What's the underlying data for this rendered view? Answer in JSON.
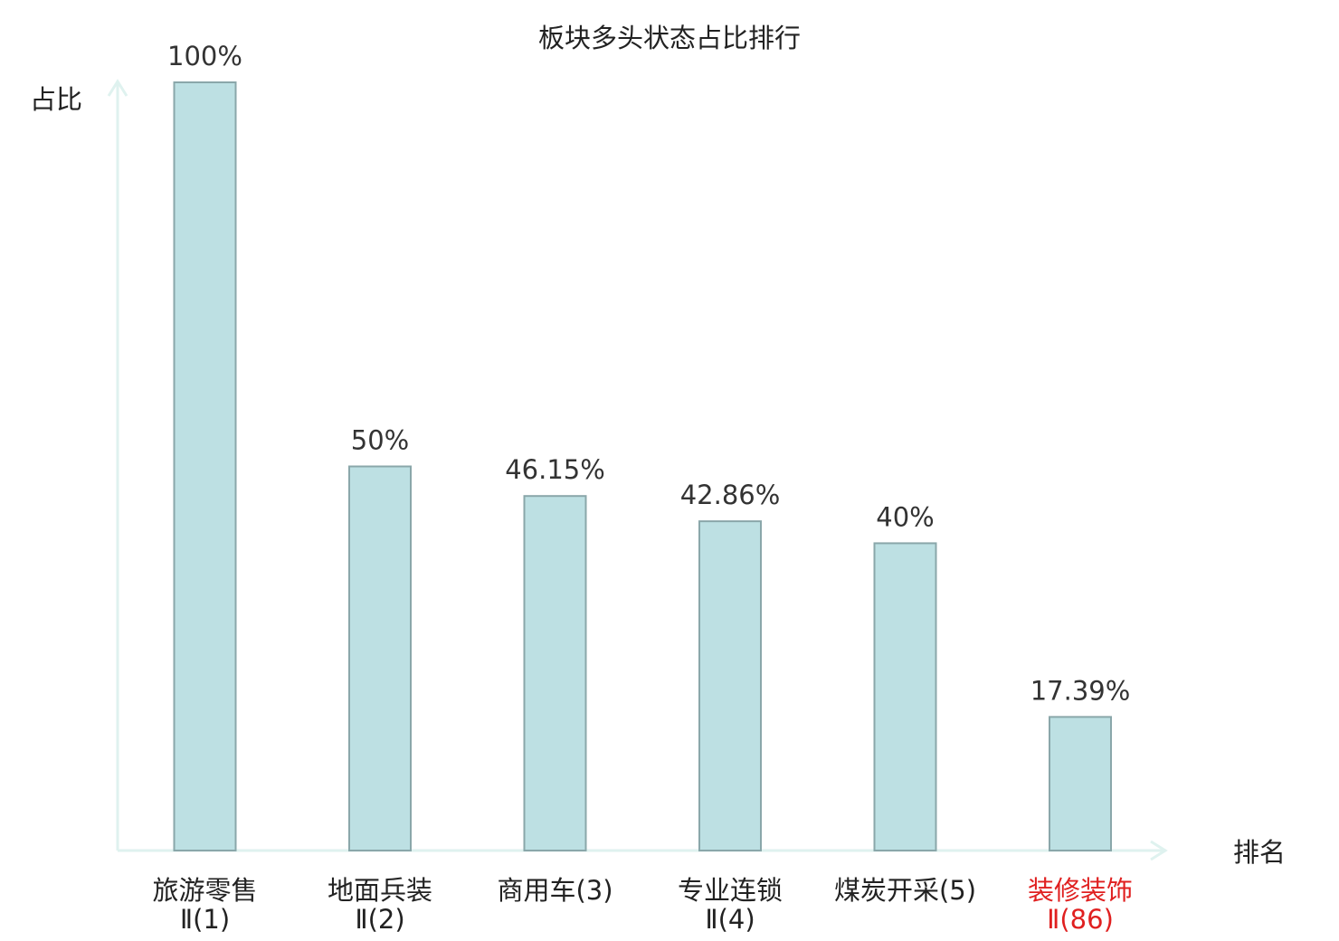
{
  "chart_data": {
    "type": "bar",
    "title": "板块多头状态占比排行",
    "ylabel": "占比",
    "xlabel": "排名",
    "ylim": [
      0,
      100
    ],
    "categories": [
      {
        "name": "旅游零售",
        "suffix": "Ⅱ(1)",
        "highlight": false
      },
      {
        "name": "地面兵装",
        "suffix": "Ⅱ(2)",
        "highlight": false
      },
      {
        "name": "商用车(3)",
        "suffix": "",
        "highlight": false
      },
      {
        "name": "专业连锁",
        "suffix": "Ⅱ(4)",
        "highlight": false
      },
      {
        "name": "煤炭开采(5)",
        "suffix": "",
        "highlight": false
      },
      {
        "name": "装修装饰",
        "suffix": "Ⅱ(86)",
        "highlight": true
      }
    ],
    "values": [
      100,
      50,
      46.15,
      42.86,
      40,
      17.39
    ],
    "value_labels": [
      "100%",
      "50%",
      "46.15%",
      "42.86%",
      "40%",
      "17.39%"
    ],
    "grid": false,
    "colors": {
      "bar_fill": "#bde0e3",
      "bar_stroke": "#8aa7aa",
      "axis": "#dff2ef",
      "text": "#222222",
      "value_text": "#333333",
      "highlight": "#e02020"
    }
  }
}
